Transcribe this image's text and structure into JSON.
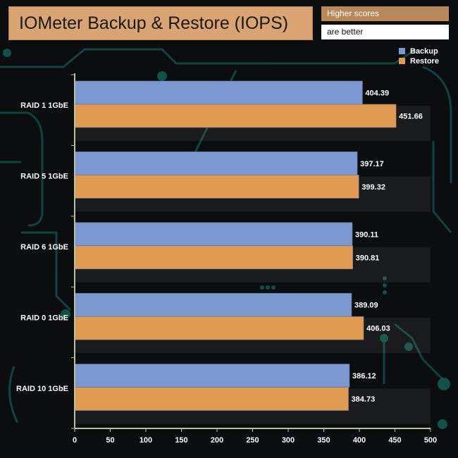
{
  "header": {
    "title": "IOMeter Backup & Restore (IOPS)",
    "note_line1": "Higher scores",
    "note_line2": "are better"
  },
  "colors": {
    "backup": "#7b98d0",
    "restore": "#e19a52",
    "axis": "#b8c2a0",
    "label": "#ffffff",
    "title_bg": "#d9a472",
    "note_bg": "#b8875a"
  },
  "chart_data": {
    "type": "bar",
    "orientation": "horizontal",
    "categories": [
      "RAID 1 1GbE",
      "RAID 5 1GbE",
      "RAID 6 1GbE",
      "RAID 0 1GbE",
      "RAID 10 1GbE"
    ],
    "series": [
      {
        "name": "Backup",
        "values": [
          404.39,
          397.17,
          390.11,
          389.09,
          386.12
        ]
      },
      {
        "name": "Restore",
        "values": [
          451.66,
          399.32,
          390.81,
          406.03,
          384.73
        ]
      }
    ],
    "value_labels": [
      [
        "404.39",
        "397.17",
        "390.11",
        "389.09",
        "386.12"
      ],
      [
        "451.66",
        "399.32",
        "390.81",
        "406.03",
        "384.73"
      ]
    ],
    "xlim": [
      0,
      500
    ],
    "xticks": [
      "0",
      "50",
      "100",
      "150",
      "200",
      "250",
      "300",
      "350",
      "400",
      "450",
      "500"
    ],
    "xlabel": "",
    "ylabel": "",
    "legend_position": "top-right",
    "grid": false
  }
}
